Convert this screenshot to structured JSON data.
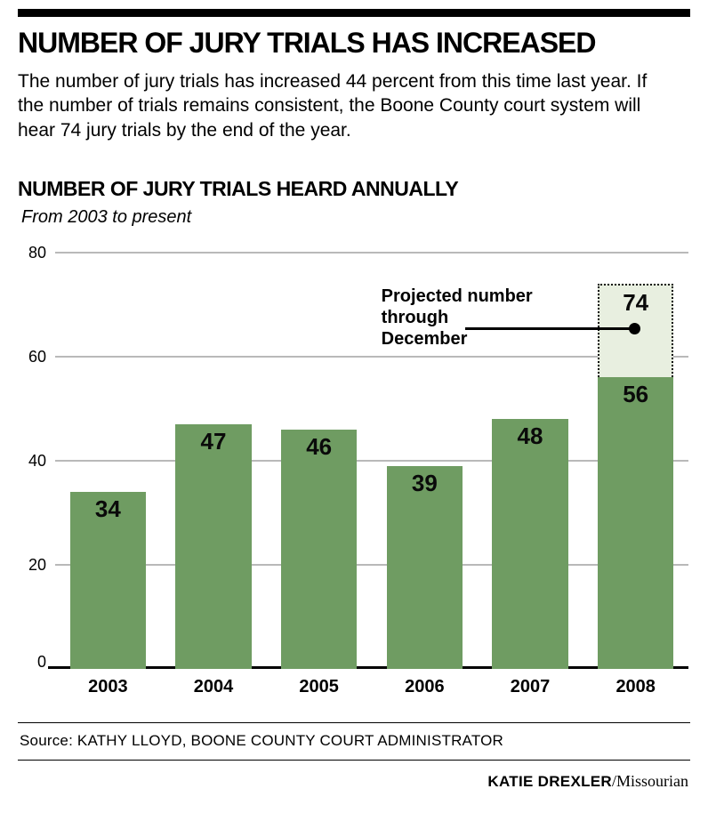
{
  "colors": {
    "bar": "#6f9c62",
    "projected_fill": "#e8efe0",
    "grid": "#b9b9b9",
    "ink": "#000000"
  },
  "header": {
    "title": "NUMBER OF JURY TRIALS HAS INCREASED",
    "intro": "The number of jury trials has increased 44 percent from this time last year. If the number of trials remains consistent, the Boone County court system will hear 74 jury trials by the end of the year."
  },
  "chart": {
    "title": "NUMBER OF JURY TRIALS HEARD ANNUALLY",
    "subtitle": "From 2003 to present"
  },
  "chart_data": {
    "type": "bar",
    "title": "NUMBER OF JURY TRIALS HEARD ANNUALLY",
    "subtitle": "From 2003 to present",
    "categories": [
      "2003",
      "2004",
      "2005",
      "2006",
      "2007",
      "2008"
    ],
    "values": [
      34,
      47,
      46,
      39,
      48,
      56
    ],
    "projected": {
      "category": "2008",
      "value": 74,
      "note": "Projected number through December"
    },
    "xlabel": "",
    "ylabel": "",
    "ylim": [
      0,
      80
    ],
    "yticks": [
      0,
      20,
      40,
      60,
      80
    ],
    "grid": true,
    "legend": "none",
    "bar_color": "#6f9c62",
    "projected_color": "#e8efe0"
  },
  "annotation": {
    "lines": [
      "Projected number",
      "through",
      "December"
    ]
  },
  "footer": {
    "source": "Source: KATHY LLOYD, BOONE COUNTY COURT ADMINISTRATOR",
    "credit_name": "KATIE DREXLER",
    "credit_publication": "/Missourian"
  }
}
